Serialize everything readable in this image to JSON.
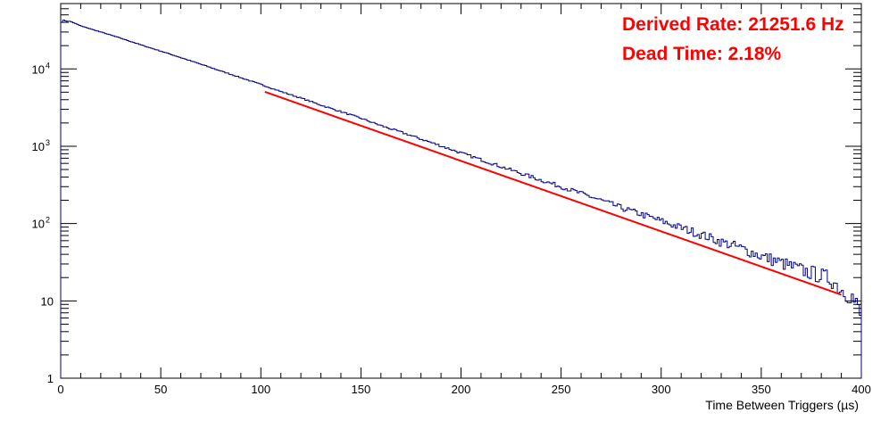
{
  "chart_data": {
    "type": "line",
    "title": "",
    "xlabel": "Time Between Triggers (µs)",
    "ylabel": "",
    "xlim": [
      0,
      400
    ],
    "ylim": [
      1,
      70000
    ],
    "y_scale": "log",
    "grid": false,
    "x_ticks": [
      "0",
      "50",
      "100",
      "150",
      "200",
      "250",
      "300",
      "350",
      "400"
    ],
    "y_ticks": [
      {
        "label": "1",
        "value": 1
      },
      {
        "label": "10",
        "value": 10
      },
      {
        "label": "10",
        "exp": "2",
        "value": 100
      },
      {
        "label": "10",
        "exp": "3",
        "value": 1000
      },
      {
        "label": "10",
        "exp": "4",
        "value": 10000
      }
    ],
    "series": [
      {
        "kind": "histogram",
        "color": "#000080",
        "bin_width": 1,
        "x": [
          0,
          1,
          2,
          3,
          5,
          8,
          10,
          20,
          30,
          40,
          50,
          60,
          70,
          80,
          90,
          100,
          110,
          120,
          130,
          140,
          150,
          160,
          170,
          180,
          190,
          200,
          210,
          220,
          230,
          240,
          250,
          260,
          270,
          280,
          290,
          300,
          310,
          320,
          330,
          340,
          350,
          360,
          370,
          380,
          385,
          390,
          395,
          398,
          400
        ],
        "y": [
          38000,
          43000,
          42000,
          41500,
          41000,
          38000,
          36000,
          30000,
          25000,
          20500,
          17000,
          14000,
          11500,
          9400,
          7700,
          6300,
          5100,
          4200,
          3400,
          2800,
          2300,
          1850,
          1520,
          1240,
          1010,
          820,
          670,
          545,
          445,
          365,
          300,
          245,
          200,
          160,
          132,
          108,
          88,
          72,
          58,
          48,
          38,
          31,
          25,
          21,
          19,
          14,
          12,
          8,
          6
        ]
      },
      {
        "kind": "fit",
        "color": "#ff0000",
        "x": [
          102,
          390
        ],
        "y": [
          5050,
          12
        ]
      }
    ],
    "annotations": [
      {
        "text": "Derived Rate: 21251.6 Hz",
        "color": "#ff0000"
      },
      {
        "text": "Dead Time: 2.18%",
        "color": "#ff0000"
      }
    ]
  }
}
